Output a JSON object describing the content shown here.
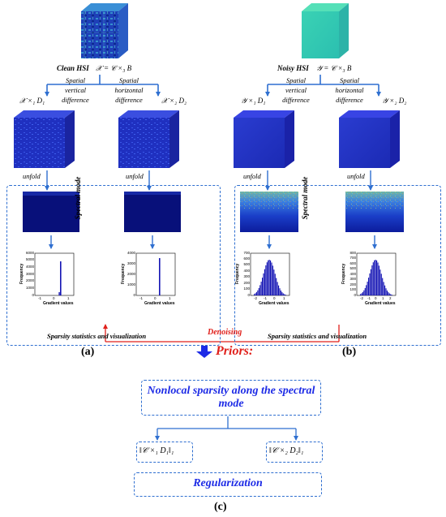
{
  "left": {
    "title": "Clean HSI",
    "formula": "𝒳 = 𝒞 ×₃ B",
    "branch_v": "Spatial vertical difference",
    "branch_h": "Spatial horizontal difference",
    "grad_v": "𝒳 ×₁ D₁",
    "grad_h": "𝒳 ×₂ D₂",
    "unfold": "unfold",
    "mode_label": "Spectral mode",
    "xlabel": "Gradient values",
    "ylabel": "Frequency",
    "box_caption": "Sparsity statistics and visualization",
    "panel": "(a)",
    "hist1_yticks": [
      "6000",
      "5000",
      "4000",
      "3000",
      "2000",
      "1000",
      "0"
    ],
    "hist2_yticks": [
      "4000",
      "3000",
      "2000",
      "1000",
      "0"
    ],
    "hist_xticks": [
      "-1",
      "0",
      "1"
    ]
  },
  "right": {
    "title": "Noisy HSI",
    "formula": "𝒴 = 𝒞 ×₃ B",
    "branch_v": "Spatial vertical difference",
    "branch_h": "Spatial horizontal difference",
    "grad_v": "𝒴 ×₁ D₁",
    "grad_h": "𝒴 ×₂ D₂",
    "unfold": "unfold",
    "mode_label": "Spectral mode",
    "xlabel": "Gradient values",
    "ylabel": "Frequency",
    "box_caption": "Sparsity statistics and visualization",
    "panel": "(b)",
    "hist1_yticks": [
      "700",
      "600",
      "500",
      "400",
      "300",
      "200",
      "100",
      "0"
    ],
    "hist2_yticks": [
      "800",
      "700",
      "600",
      "500",
      "400",
      "300",
      "200",
      "100",
      "0"
    ],
    "hist1_xticks": [
      "-2",
      "-1",
      "0",
      "1"
    ],
    "hist2_xticks": [
      "-2",
      "-1",
      "0",
      "1",
      "2"
    ]
  },
  "center": {
    "denoising": "Denoising",
    "priors": "Priors:",
    "nonlocal": "Nonlocal sparsity along the spectral mode",
    "norm1": "‖𝒞 ×₁ D₁‖₁",
    "norm2": "‖𝒞 ×₂ D₂‖₁",
    "regularization": "Regularization",
    "panel": "(c)"
  },
  "colors": {
    "arrow_blue": "#2f6fd0",
    "heading_blue": "#1d2be6",
    "red": "#e0201b",
    "hist_blue": "#1414b4",
    "dark_navy": "#08107a"
  }
}
